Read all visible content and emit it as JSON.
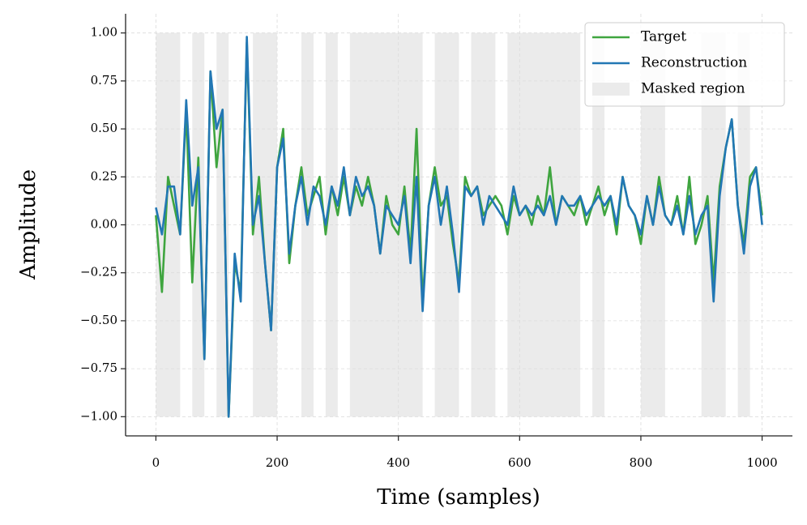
{
  "chart_data": {
    "type": "line",
    "xlabel": "Time (samples)",
    "ylabel": "Amplitude",
    "xlim": [
      -50,
      1050
    ],
    "ylim": [
      -1.1,
      1.1
    ],
    "xticks": [
      0,
      200,
      400,
      600,
      800,
      1000
    ],
    "yticks": [
      {
        "value": -1,
        "label": "−1.00"
      },
      {
        "value": -0.75,
        "label": "−0.75"
      },
      {
        "value": -0.5,
        "label": "−0.50"
      },
      {
        "value": -0.25,
        "label": "−0.25"
      },
      {
        "value": 0,
        "label": "0.00"
      },
      {
        "value": 0.25,
        "label": "0.25"
      },
      {
        "value": 0.5,
        "label": "0.50"
      },
      {
        "value": 0.75,
        "label": "0.75"
      },
      {
        "value": 1,
        "label": "1.00"
      }
    ],
    "grid": true,
    "legend": "upper right",
    "mask_label": "Masked region",
    "mask_color": "#ebebeb",
    "masked_regions": [
      [
        0,
        40
      ],
      [
        60,
        80
      ],
      [
        100,
        120
      ],
      [
        160,
        200
      ],
      [
        240,
        260
      ],
      [
        280,
        300
      ],
      [
        320,
        440
      ],
      [
        460,
        500
      ],
      [
        520,
        560
      ],
      [
        580,
        700
      ],
      [
        720,
        740
      ],
      [
        800,
        840
      ],
      [
        900,
        940
      ],
      [
        960,
        980
      ]
    ],
    "x": [
      0,
      10,
      20,
      30,
      40,
      50,
      60,
      70,
      80,
      90,
      100,
      110,
      120,
      130,
      140,
      150,
      160,
      170,
      180,
      190,
      200,
      210,
      220,
      230,
      240,
      250,
      260,
      270,
      280,
      290,
      300,
      310,
      320,
      330,
      340,
      350,
      360,
      370,
      380,
      390,
      400,
      410,
      420,
      430,
      440,
      450,
      460,
      470,
      480,
      490,
      500,
      510,
      520,
      530,
      540,
      550,
      560,
      570,
      580,
      590,
      600,
      610,
      620,
      630,
      640,
      650,
      660,
      670,
      680,
      690,
      700,
      710,
      720,
      730,
      740,
      750,
      760,
      770,
      780,
      790,
      800,
      810,
      820,
      830,
      840,
      850,
      860,
      870,
      880,
      890,
      900,
      910,
      920,
      930,
      940,
      950,
      960,
      970,
      980,
      990,
      1000
    ],
    "series": [
      {
        "name": "Target",
        "color": "#3fa53f",
        "values": [
          0.05,
          -0.35,
          0.25,
          0.1,
          -0.05,
          0.6,
          -0.3,
          0.35,
          -0.7,
          0.8,
          0.3,
          0.6,
          -1.0,
          -0.2,
          -0.35,
          0.95,
          -0.05,
          0.25,
          -0.2,
          -0.55,
          0.3,
          0.5,
          -0.2,
          0.1,
          0.3,
          0.05,
          0.15,
          0.25,
          -0.05,
          0.2,
          0.05,
          0.25,
          0.05,
          0.2,
          0.1,
          0.25,
          0.1,
          -0.15,
          0.15,
          0.0,
          -0.05,
          0.2,
          -0.15,
          0.5,
          -0.4,
          0.1,
          0.3,
          0.1,
          0.15,
          -0.1,
          -0.3,
          0.25,
          0.15,
          0.2,
          0.05,
          0.1,
          0.15,
          0.1,
          -0.05,
          0.15,
          0.05,
          0.1,
          0.0,
          0.15,
          0.05,
          0.3,
          0.0,
          0.15,
          0.1,
          0.05,
          0.15,
          0.0,
          0.1,
          0.2,
          0.05,
          0.15,
          -0.05,
          0.25,
          0.1,
          0.05,
          -0.1,
          0.15,
          0.0,
          0.25,
          0.05,
          0.0,
          0.15,
          -0.05,
          0.25,
          -0.1,
          0.0,
          0.15,
          -0.3,
          0.2,
          0.4,
          0.55,
          0.1,
          -0.1,
          0.25,
          0.3,
          0.05
        ]
      },
      {
        "name": "Reconstruction",
        "color": "#2277b4",
        "values": [
          0.09,
          -0.05,
          0.2,
          0.2,
          -0.05,
          0.65,
          0.1,
          0.3,
          -0.7,
          0.8,
          0.5,
          0.6,
          -1.0,
          -0.15,
          -0.4,
          0.98,
          0.0,
          0.15,
          -0.2,
          -0.55,
          0.3,
          0.45,
          -0.15,
          0.1,
          0.25,
          0.0,
          0.2,
          0.15,
          0.0,
          0.2,
          0.1,
          0.3,
          0.05,
          0.25,
          0.15,
          0.2,
          0.1,
          -0.15,
          0.1,
          0.05,
          0.0,
          0.15,
          -0.2,
          0.25,
          -0.45,
          0.1,
          0.25,
          0.0,
          0.2,
          -0.05,
          -0.35,
          0.2,
          0.15,
          0.2,
          0.0,
          0.15,
          0.1,
          0.05,
          0.0,
          0.2,
          0.05,
          0.1,
          0.05,
          0.1,
          0.05,
          0.15,
          0.0,
          0.15,
          0.1,
          0.1,
          0.15,
          0.05,
          0.1,
          0.15,
          0.1,
          0.15,
          0.0,
          0.25,
          0.1,
          0.05,
          -0.05,
          0.15,
          0.0,
          0.2,
          0.05,
          0.0,
          0.1,
          -0.05,
          0.15,
          -0.05,
          0.05,
          0.1,
          -0.4,
          0.15,
          0.4,
          0.55,
          0.1,
          -0.15,
          0.2,
          0.3,
          0.0
        ]
      }
    ]
  }
}
